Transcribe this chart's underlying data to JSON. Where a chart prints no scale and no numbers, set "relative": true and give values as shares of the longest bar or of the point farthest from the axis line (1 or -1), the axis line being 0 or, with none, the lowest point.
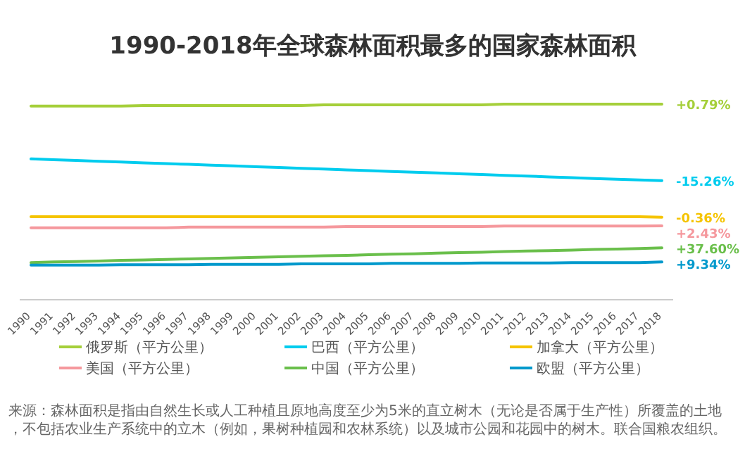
{
  "chart_data": {
    "type": "line",
    "title": "1990-2018年全球森林面积最多的国家森林面积",
    "relative": true,
    "legend": "bottom",
    "marker": "none",
    "categories": [
      "1990",
      "1991",
      "1992",
      "1993",
      "1994",
      "1995",
      "1996",
      "1997",
      "1998",
      "1999",
      "2000",
      "2001",
      "2002",
      "2003",
      "2004",
      "2005",
      "2006",
      "2007",
      "2008",
      "2009",
      "2010",
      "2011",
      "2012",
      "2013",
      "2014",
      "2015",
      "2016",
      "2017",
      "2018"
    ],
    "series": [
      {
        "name": "俄罗斯（平方公里）",
        "color": "#a5cf3a",
        "values": [
          0.99,
          0.99,
          0.99,
          0.99,
          0.99,
          0.993,
          0.993,
          0.993,
          0.993,
          0.993,
          0.993,
          0.993,
          0.993,
          0.996,
          0.996,
          0.996,
          0.996,
          0.996,
          0.996,
          0.996,
          0.996,
          1.0,
          1.0,
          1.0,
          1.0,
          1.0,
          1.0,
          1.0,
          1.0
        ]
      },
      {
        "name": "巴西（平方公里）",
        "color": "#00ccee",
        "values": [
          0.72,
          0.716,
          0.712,
          0.708,
          0.704,
          0.7,
          0.696,
          0.692,
          0.688,
          0.684,
          0.68,
          0.676,
          0.672,
          0.668,
          0.664,
          0.66,
          0.656,
          0.652,
          0.648,
          0.644,
          0.64,
          0.636,
          0.632,
          0.628,
          0.624,
          0.62,
          0.616,
          0.612,
          0.609
        ]
      },
      {
        "name": "加拿大（平方公里）",
        "color": "#f5c400",
        "values": [
          0.424,
          0.424,
          0.424,
          0.424,
          0.424,
          0.424,
          0.424,
          0.424,
          0.424,
          0.424,
          0.424,
          0.424,
          0.424,
          0.424,
          0.424,
          0.424,
          0.424,
          0.424,
          0.424,
          0.424,
          0.424,
          0.424,
          0.424,
          0.424,
          0.424,
          0.424,
          0.424,
          0.424,
          0.422
        ]
      },
      {
        "name": "美国（平方公里）",
        "color": "#f5989d",
        "values": [
          0.368,
          0.368,
          0.368,
          0.368,
          0.368,
          0.368,
          0.368,
          0.371,
          0.371,
          0.371,
          0.371,
          0.371,
          0.371,
          0.371,
          0.374,
          0.374,
          0.374,
          0.374,
          0.374,
          0.374,
          0.374,
          0.377,
          0.377,
          0.377,
          0.377,
          0.377,
          0.377,
          0.377,
          0.378
        ]
      },
      {
        "name": "中国（平方公里）",
        "color": "#6abf4b",
        "values": [
          0.19,
          0.193,
          0.195,
          0.198,
          0.201,
          0.203,
          0.206,
          0.209,
          0.211,
          0.214,
          0.217,
          0.219,
          0.222,
          0.225,
          0.227,
          0.23,
          0.233,
          0.235,
          0.238,
          0.241,
          0.243,
          0.246,
          0.249,
          0.251,
          0.254,
          0.257,
          0.259,
          0.262,
          0.265
        ]
      },
      {
        "name": "欧盟（平方公里）",
        "color": "#0099cc",
        "values": [
          0.177,
          0.177,
          0.177,
          0.177,
          0.179,
          0.179,
          0.179,
          0.179,
          0.181,
          0.181,
          0.181,
          0.181,
          0.183,
          0.183,
          0.183,
          0.183,
          0.186,
          0.186,
          0.186,
          0.186,
          0.188,
          0.188,
          0.188,
          0.188,
          0.19,
          0.19,
          0.19,
          0.19,
          0.193
        ]
      }
    ],
    "annotations": [
      {
        "text": "+0.79%",
        "x": "2018",
        "y": 1.0
      },
      {
        "text": "-15.26%",
        "x": "2018",
        "y": 0.609
      },
      {
        "text": "-0.36%",
        "x": "2018",
        "y": 0.422
      },
      {
        "text": "+2.43%",
        "x": "2018",
        "y": 0.378
      },
      {
        "text": "+37.60%",
        "x": "2018",
        "y": 0.265
      },
      {
        "text": "+9.34%",
        "x": "2018",
        "y": 0.193
      },
      "来源：森林面积是指由自然生长或人工种植且原地高度至少为5米的直立树木（无论是否属于生产性）所覆盖的土地，不包括农业生产系统中的立木（例如，果树种植园和农林系统）以及城市公园和花园中的树木。联合国粮农组织。"
    ]
  }
}
